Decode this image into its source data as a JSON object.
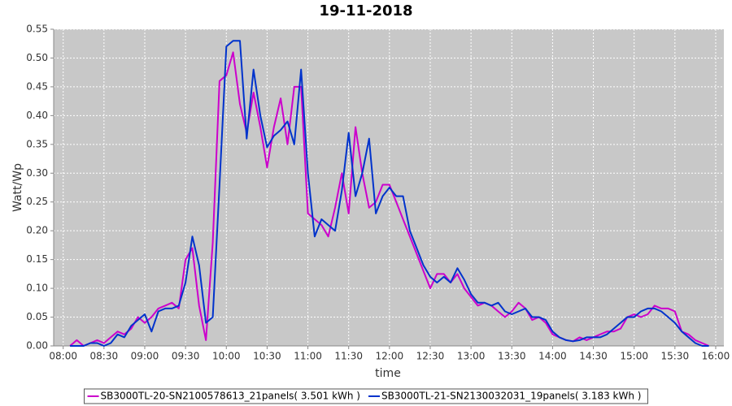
{
  "chart_data": {
    "type": "line",
    "title": "19-11-2018",
    "x_label": "time",
    "y_label": "Watt/Wp",
    "xlim": [
      "07:53",
      "16:06"
    ],
    "xticks": [
      "08:00",
      "08:30",
      "09:00",
      "09:30",
      "10:00",
      "10:30",
      "11:00",
      "11:30",
      "12:00",
      "12:30",
      "13:00",
      "13:30",
      "14:00",
      "14:30",
      "15:00",
      "15:30",
      "16:00"
    ],
    "ylim": [
      0,
      0.55
    ],
    "yticks": [
      {
        "value": 0,
        "label": "0.00"
      },
      {
        "value": 0.05,
        "label": "0.05"
      },
      {
        "value": 0.1,
        "label": "0.10"
      },
      {
        "value": 0.15,
        "label": "0.15"
      },
      {
        "value": 0.2,
        "label": "0.20"
      },
      {
        "value": 0.25,
        "label": "0.25"
      },
      {
        "value": 0.3,
        "label": "0.30"
      },
      {
        "value": 0.35,
        "label": "0.35"
      },
      {
        "value": 0.4,
        "label": "0.40"
      },
      {
        "value": 0.45,
        "label": "0.45"
      },
      {
        "value": 0.5,
        "label": "0.50"
      },
      {
        "value": 0.55,
        "label": "0.55"
      }
    ],
    "grid": true,
    "legend": "bottom",
    "x": [
      "08:05",
      "08:10",
      "08:15",
      "08:20",
      "08:25",
      "08:30",
      "08:35",
      "08:40",
      "08:45",
      "08:50",
      "08:55",
      "09:00",
      "09:05",
      "09:10",
      "09:15",
      "09:20",
      "09:25",
      "09:30",
      "09:35",
      "09:40",
      "09:45",
      "09:50",
      "09:55",
      "10:00",
      "10:05",
      "10:10",
      "10:15",
      "10:20",
      "10:25",
      "10:30",
      "10:35",
      "10:40",
      "10:45",
      "10:50",
      "10:55",
      "11:00",
      "11:05",
      "11:10",
      "11:15",
      "11:20",
      "11:25",
      "11:30",
      "11:35",
      "11:40",
      "11:45",
      "11:50",
      "11:55",
      "12:00",
      "12:05",
      "12:10",
      "12:15",
      "12:20",
      "12:25",
      "12:30",
      "12:35",
      "12:40",
      "12:45",
      "12:50",
      "12:55",
      "13:00",
      "13:05",
      "13:10",
      "13:15",
      "13:20",
      "13:25",
      "13:30",
      "13:35",
      "13:40",
      "13:45",
      "13:50",
      "13:55",
      "14:00",
      "14:05",
      "14:10",
      "14:15",
      "14:20",
      "14:25",
      "14:30",
      "14:35",
      "14:40",
      "14:45",
      "14:50",
      "14:55",
      "15:00",
      "15:05",
      "15:10",
      "15:15",
      "15:20",
      "15:25",
      "15:30",
      "15:35",
      "15:40",
      "15:45",
      "15:50",
      "15:55"
    ],
    "series": [
      {
        "name": "SB3000TL-20-SN2100578613_21panels( 3.501 kWh )",
        "color": "#cc00cc",
        "values": [
          0,
          0.01,
          0,
          0.005,
          0.01,
          0.005,
          0.015,
          0.025,
          0.02,
          0.03,
          0.05,
          0.04,
          0.05,
          0.065,
          0.07,
          0.075,
          0.065,
          0.15,
          0.17,
          0.07,
          0.01,
          0.18,
          0.46,
          0.47,
          0.51,
          0.42,
          0.37,
          0.44,
          0.38,
          0.31,
          0.38,
          0.43,
          0.35,
          0.45,
          0.45,
          0.23,
          0.22,
          0.21,
          0.19,
          0.24,
          0.3,
          0.23,
          0.38,
          0.3,
          0.24,
          0.25,
          0.28,
          0.28,
          0.25,
          0.22,
          0.19,
          0.16,
          0.13,
          0.1,
          0.125,
          0.125,
          0.11,
          0.125,
          0.1,
          0.085,
          0.07,
          0.075,
          0.07,
          0.06,
          0.05,
          0.06,
          0.075,
          0.065,
          0.045,
          0.05,
          0.04,
          0.02,
          0.015,
          0.01,
          0.008,
          0.015,
          0.01,
          0.015,
          0.02,
          0.025,
          0.025,
          0.03,
          0.05,
          0.055,
          0.05,
          0.055,
          0.07,
          0.065,
          0.065,
          0.06,
          0.025,
          0.02,
          0.01,
          0.005,
          0
        ]
      },
      {
        "name": "SB3000TL-21-SN2130032031_19panels( 3.183 kWh )",
        "color": "#0033cc",
        "values": [
          0,
          0,
          0,
          0.005,
          0.005,
          0,
          0.005,
          0.02,
          0.015,
          0.035,
          0.045,
          0.055,
          0.025,
          0.06,
          0.065,
          0.065,
          0.07,
          0.11,
          0.19,
          0.14,
          0.04,
          0.05,
          0.28,
          0.52,
          0.53,
          0.53,
          0.36,
          0.48,
          0.4,
          0.345,
          0.365,
          0.375,
          0.39,
          0.35,
          0.48,
          0.3,
          0.19,
          0.22,
          0.21,
          0.2,
          0.27,
          0.37,
          0.26,
          0.3,
          0.36,
          0.23,
          0.26,
          0.275,
          0.26,
          0.26,
          0.2,
          0.17,
          0.14,
          0.12,
          0.11,
          0.12,
          0.11,
          0.135,
          0.115,
          0.09,
          0.075,
          0.075,
          0.07,
          0.075,
          0.06,
          0.055,
          0.06,
          0.065,
          0.05,
          0.05,
          0.045,
          0.025,
          0.015,
          0.01,
          0.008,
          0.01,
          0.015,
          0.015,
          0.015,
          0.02,
          0.03,
          0.04,
          0.05,
          0.05,
          0.06,
          0.065,
          0.065,
          0.06,
          0.05,
          0.04,
          0.025,
          0.015,
          0.005,
          0,
          0
        ]
      }
    ]
  }
}
